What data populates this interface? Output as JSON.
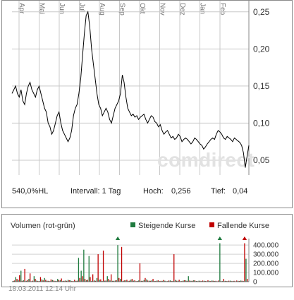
{
  "chart_data": [
    {
      "type": "line",
      "months": [
        "Apr",
        "Mai",
        "Jun",
        "Jul",
        "Aug",
        "Sep",
        "Okt",
        "Nov",
        "Dez",
        "Jan",
        "Feb"
      ],
      "yticks": [
        "0,25",
        "0,20",
        "0,15",
        "0,10",
        "0,05"
      ],
      "ylim": [
        0.03,
        0.265
      ],
      "grid": true,
      "watermark": "comdirect",
      "series": [
        {
          "color": "#000000",
          "values": [
            0.14,
            0.145,
            0.15,
            0.14,
            0.135,
            0.145,
            0.13,
            0.125,
            0.14,
            0.15,
            0.155,
            0.145,
            0.14,
            0.135,
            0.145,
            0.15,
            0.14,
            0.13,
            0.12,
            0.115,
            0.1,
            0.095,
            0.085,
            0.09,
            0.1,
            0.11,
            0.115,
            0.1,
            0.09,
            0.085,
            0.08,
            0.075,
            0.08,
            0.09,
            0.11,
            0.12,
            0.125,
            0.14,
            0.16,
            0.19,
            0.22,
            0.245,
            0.25,
            0.23,
            0.2,
            0.18,
            0.16,
            0.14,
            0.125,
            0.12,
            0.11,
            0.115,
            0.12,
            0.115,
            0.105,
            0.1,
            0.11,
            0.12,
            0.125,
            0.13,
            0.14,
            0.165,
            0.155,
            0.135,
            0.12,
            0.115,
            0.11,
            0.112,
            0.108,
            0.11,
            0.105,
            0.108,
            0.11,
            0.112,
            0.105,
            0.1,
            0.105,
            0.11,
            0.108,
            0.102,
            0.1,
            0.095,
            0.098,
            0.09,
            0.085,
            0.088,
            0.09,
            0.085,
            0.08,
            0.082,
            0.078,
            0.08,
            0.085,
            0.082,
            0.075,
            0.078,
            0.08,
            0.078,
            0.075,
            0.072,
            0.075,
            0.08,
            0.078,
            0.075,
            0.072,
            0.07,
            0.065,
            0.068,
            0.072,
            0.075,
            0.078,
            0.08,
            0.078,
            0.085,
            0.09,
            0.088,
            0.085,
            0.08,
            0.078,
            0.082,
            0.08,
            0.078,
            0.075,
            0.08,
            0.078,
            0.076,
            0.074,
            0.07,
            0.06,
            0.04,
            0.055,
            0.07
          ]
        }
      ]
    },
    {
      "type": "bar",
      "yticks": [
        "400.000",
        "300.000",
        "200.000",
        "100.000",
        "0"
      ],
      "ylim": [
        0,
        440000
      ],
      "series": [
        {
          "name": "Steigende Kurse",
          "color": "#1e7a3e",
          "values": [
            8000,
            50000,
            20000,
            120000,
            15000,
            9000,
            30000,
            5000,
            60000,
            12000,
            7000,
            25000,
            40000,
            10000,
            6000,
            18000,
            9000,
            30000,
            15000,
            8000,
            12000,
            20000,
            14000,
            6000,
            9000,
            260000,
            120000,
            350000,
            15000,
            280000,
            9000,
            14000,
            40000,
            22000,
            8000,
            11000,
            60000,
            14000,
            9000,
            12000,
            400000,
            30000,
            8000,
            15000,
            9000,
            22000,
            11000,
            6000,
            13000,
            9000,
            18000,
            25000,
            10000,
            14000,
            8000,
            12000,
            7000,
            9000,
            11000,
            6000,
            14000,
            8000,
            19000,
            10000,
            6000,
            12000,
            14000,
            60000,
            9000,
            15000,
            8000,
            11000,
            7000,
            10000,
            6000,
            9000,
            12000,
            8000,
            5000,
            420000,
            7000,
            9000,
            6000,
            11000,
            8000,
            5000,
            9000,
            12000,
            7000,
            250000
          ]
        },
        {
          "name": "Fallende Kurse",
          "color": "#c00000",
          "values": [
            12000,
            30000,
            70000,
            10000,
            140000,
            18000,
            90000,
            11000,
            30000,
            8000,
            50000,
            14000,
            20000,
            9000,
            25000,
            12000,
            7000,
            18000,
            35000,
            10000,
            9000,
            15000,
            8000,
            20000,
            11000,
            40000,
            60000,
            30000,
            20000,
            50000,
            80000,
            9000,
            300000,
            25000,
            340000,
            12000,
            30000,
            80000,
            9000,
            16000,
            40000,
            380000,
            14000,
            20000,
            10000,
            30000,
            15000,
            8000,
            200000,
            9000,
            40000,
            12000,
            9000,
            30000,
            7000,
            14000,
            9000,
            18000,
            6000,
            12000,
            8000,
            300000,
            10000,
            20000,
            7000,
            15000,
            9000,
            12000,
            10000,
            14000,
            6000,
            9000,
            12000,
            8000,
            15000,
            7000,
            10000,
            9000,
            12000,
            6000,
            30000,
            8000,
            11000,
            6000,
            9000,
            12000,
            8000,
            10000,
            420000,
            30000
          ]
        }
      ]
    }
  ],
  "stats": {
    "hl": "540,0%HL",
    "interval": "Intervall: 1 Tag",
    "high_label": "Hoch:",
    "high_value": "0,256",
    "low_label": "Tief:",
    "low_value": "0,04"
  },
  "volume": {
    "title": "Volumen (rot-grün)",
    "legend_up": "Steigende Kurse",
    "legend_down": "Fallende Kurse",
    "up_color": "#1e7a3e",
    "down_color": "#c00000"
  },
  "timestamp": "18.03.2011 12:14 Uhr"
}
